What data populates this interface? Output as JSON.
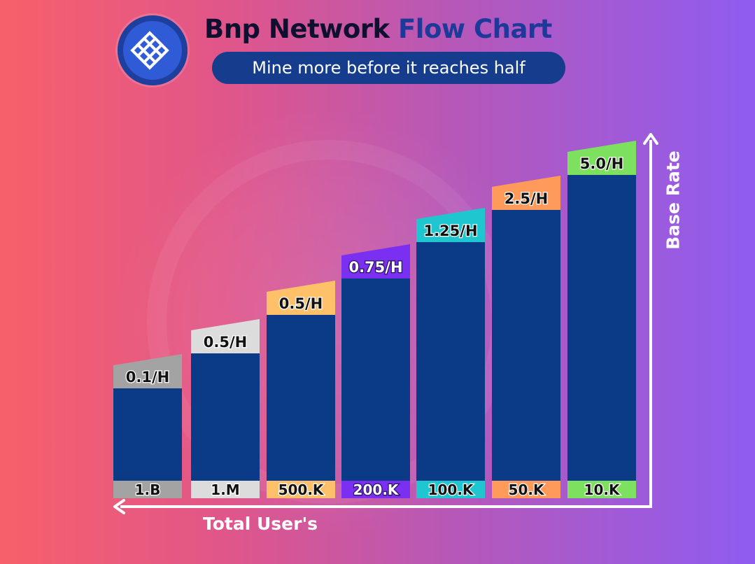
{
  "header": {
    "title_part1": "Bnp Network",
    "title_part2": "Flow Chart",
    "subtitle": "Mine more before it reaches half"
  },
  "logo": {
    "icon": "bnp-network-logo-icon"
  },
  "colors": {
    "bar": "#0b3a87",
    "title_dark": "#0f1030",
    "title_blue": "#1d3a9a",
    "subtitle_bg": "#163c8e",
    "axis": "#ffffff"
  },
  "chart_data": {
    "type": "bar",
    "title": "Bnp Network Flow Chart",
    "subtitle": "Mine more before it reaches half",
    "xlabel": "Total User's",
    "ylabel": "Base Rate",
    "categories": [
      "1.B",
      "1.M",
      "500.K",
      "200.K",
      "100.K",
      "50.K",
      "10.K"
    ],
    "rate_labels": [
      "0.1/H",
      "0.5/H",
      "0.5/H",
      "0.75/H",
      "1.25/H",
      "2.5/H",
      "5.0/H"
    ],
    "values": [
      0.1,
      0.5,
      0.5,
      0.75,
      1.25,
      2.5,
      5.0
    ],
    "tag_colors": [
      "#a3a3a3",
      "#dcdcdc",
      "#ffc06a",
      "#7b2ff0",
      "#1fc6cf",
      "#ff9a5a",
      "#7ee05f"
    ],
    "rate_text_colors": [
      "#111111",
      "#111111",
      "#111111",
      "#ffffff",
      "#111111",
      "#111111",
      "#111111"
    ],
    "category_text_colors": [
      "#111111",
      "#111111",
      "#111111",
      "#ffffff",
      "#111111",
      "#111111",
      "#111111"
    ],
    "grid": false,
    "legend": "none",
    "note": "bar heights increase by rank; values are the labeled base rates"
  }
}
